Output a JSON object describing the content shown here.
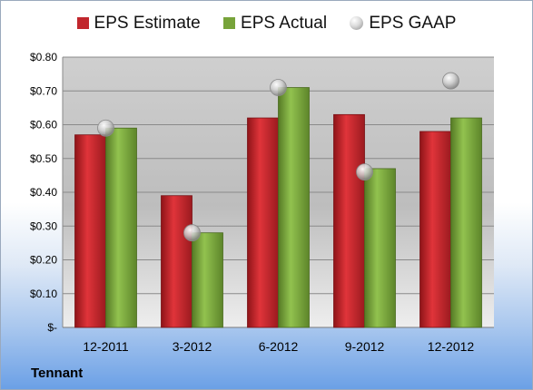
{
  "company": "Tennant",
  "colors": {
    "estimate": "#c1272d",
    "actual": "#77a33a",
    "gaap": "#bfbfbf"
  },
  "chart_data": {
    "type": "bar",
    "categories": [
      "12-2011",
      "3-2012",
      "6-2012",
      "9-2012",
      "12-2012"
    ],
    "series": [
      {
        "name": "EPS Estimate",
        "values": [
          0.57,
          0.39,
          0.62,
          0.63,
          0.58
        ]
      },
      {
        "name": "EPS Actual",
        "values": [
          0.59,
          0.28,
          0.71,
          0.47,
          0.62
        ]
      },
      {
        "name": "EPS GAAP",
        "values": [
          0.59,
          0.28,
          0.71,
          0.46,
          0.73
        ],
        "marker": "circle"
      }
    ],
    "ylim": [
      0,
      0.8
    ],
    "yticks": [
      0,
      0.1,
      0.2,
      0.3,
      0.4,
      0.5,
      0.6,
      0.7,
      0.8
    ],
    "ytick_labels": [
      "$-",
      "$0.10",
      "$0.20",
      "$0.30",
      "$0.40",
      "$0.50",
      "$0.60",
      "$0.70",
      "$0.80"
    ],
    "grid": true,
    "legend": "top"
  }
}
